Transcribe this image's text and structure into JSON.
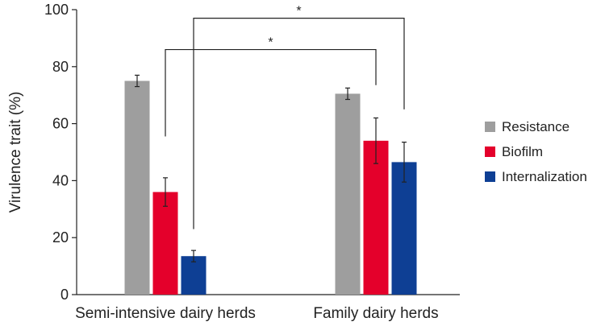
{
  "chart_data": {
    "type": "bar",
    "title": "",
    "xlabel": "",
    "ylabel": "Virulence trait (%)",
    "ylim": [
      0,
      100
    ],
    "yticks": [
      0,
      20,
      40,
      60,
      80,
      100
    ],
    "categories": [
      "Semi-intensive dairy herds",
      "Family dairy herds"
    ],
    "series": [
      {
        "name": "Resistance",
        "color": "#9e9e9e",
        "values": [
          75,
          70.5
        ],
        "errors": [
          2,
          2
        ]
      },
      {
        "name": "Biofilm",
        "color": "#e4002b",
        "values": [
          36,
          54
        ],
        "errors": [
          5,
          8
        ]
      },
      {
        "name": "Internalization",
        "color": "#0e3f94",
        "values": [
          13.5,
          46.5
        ],
        "errors": [
          2,
          7
        ]
      }
    ],
    "legend": {
      "placement": "right"
    },
    "grid": false,
    "annotations": [
      {
        "label": "*",
        "from": "Semi-intensive dairy herds / Biofilm",
        "to": "Family dairy herds / Biofilm",
        "bracket_y": 86
      },
      {
        "label": "*",
        "from": "Semi-intensive dairy herds / Internalization",
        "to": "Family dairy herds / Internalization",
        "bracket_y": 97
      }
    ]
  }
}
